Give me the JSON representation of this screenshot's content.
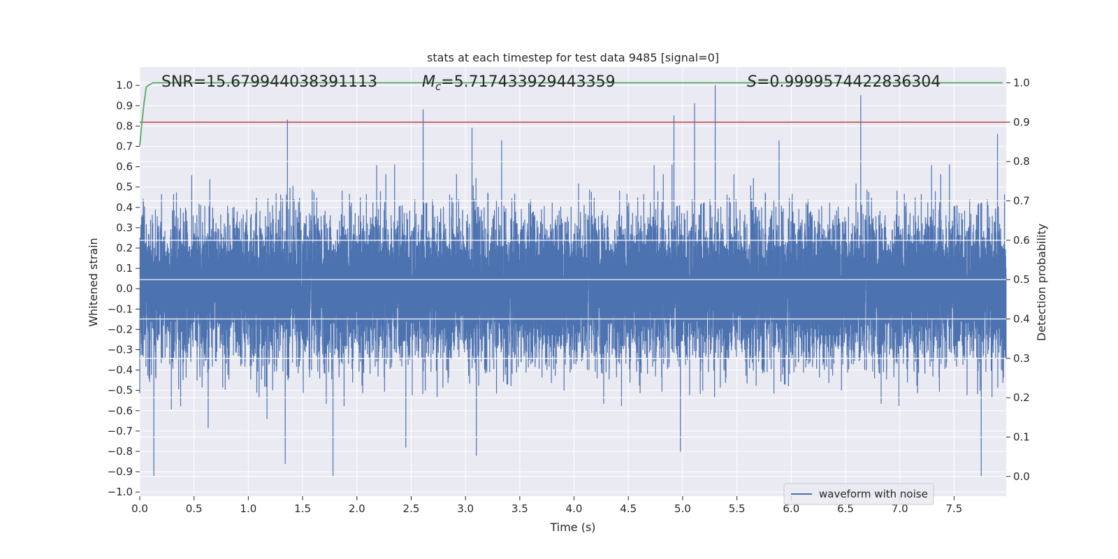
{
  "chart_data": {
    "type": "line",
    "title": "stats at each timestep for test data 9485 [signal=0]",
    "xlabel": "Time (s)",
    "ylabel": "Whitened strain",
    "ylabel_right": "Detection probability",
    "xlim": [
      0.0,
      7.98
    ],
    "ylim": [
      -1.02,
      1.09
    ],
    "ylim_right": [
      -0.05,
      1.04
    ],
    "x_ticks": [
      "0.0",
      "0.5",
      "1.0",
      "1.5",
      "2.0",
      "2.5",
      "3.0",
      "3.5",
      "4.0",
      "4.5",
      "5.0",
      "5.5",
      "6.0",
      "6.5",
      "7.0",
      "7.5"
    ],
    "y_ticks": [
      "−1.0",
      "−0.9",
      "−0.8",
      "−0.7",
      "−0.6",
      "−0.5",
      "−0.4",
      "−0.3",
      "−0.2",
      "−0.1",
      "0.0",
      "0.1",
      "0.2",
      "0.3",
      "0.4",
      "0.5",
      "0.6",
      "0.7",
      "0.8",
      "0.9",
      "1.0"
    ],
    "y_ticks_right": [
      "0.0",
      "0.1",
      "0.2",
      "0.3",
      "0.4",
      "0.5",
      "0.6",
      "0.7",
      "0.8",
      "0.9",
      "1.0"
    ],
    "annotations": {
      "snr": "SNR=15.679944038391113",
      "mc_symbol": "M",
      "mc_sub": "c",
      "mc_value": "=5.717433929443359",
      "s_symbol": "S",
      "s_value": "=0.9999574422836304"
    },
    "legend": {
      "label": "waveform with noise",
      "placement": "lower-right"
    },
    "threshold_line": {
      "axis": "right",
      "value": 0.9,
      "color": "#c44e52"
    },
    "series": [
      {
        "name": "waveform with noise",
        "axis": "left",
        "color": "#4c72b0",
        "sample_rate_hz": 2048,
        "duration_s": 7.98,
        "noise_std": 0.17,
        "seed": 9485,
        "peaks": [
          {
            "t": 1.36,
            "v": 0.83
          },
          {
            "t": 2.61,
            "v": 0.88
          },
          {
            "t": 3.06,
            "v": 0.79
          },
          {
            "t": 4.92,
            "v": 0.85
          },
          {
            "t": 5.11,
            "v": 0.91
          },
          {
            "t": 5.3,
            "v": 1.0
          },
          {
            "t": 6.64,
            "v": 0.95
          },
          {
            "t": 7.9,
            "v": 0.76
          },
          {
            "t": 0.13,
            "v": -0.92
          },
          {
            "t": 1.34,
            "v": -0.86
          },
          {
            "t": 1.78,
            "v": -0.92
          },
          {
            "t": 3.1,
            "v": -0.82
          },
          {
            "t": 7.75,
            "v": -0.92
          },
          {
            "t": 4.98,
            "v": -0.8
          },
          {
            "t": 2.45,
            "v": -0.78
          }
        ]
      },
      {
        "name": "detection probability",
        "axis": "right",
        "color": "#55a868",
        "x": [
          0.0,
          0.02,
          0.04,
          0.06,
          0.12,
          7.95
        ],
        "values": [
          0.84,
          0.9,
          0.95,
          0.99,
          1.0,
          1.0
        ]
      }
    ]
  },
  "colors": {
    "plot_background": "#eaeaf2",
    "grid": "#ffffff",
    "waveform": "#4c72b0",
    "probability": "#55a868",
    "threshold": "#c44e52"
  }
}
